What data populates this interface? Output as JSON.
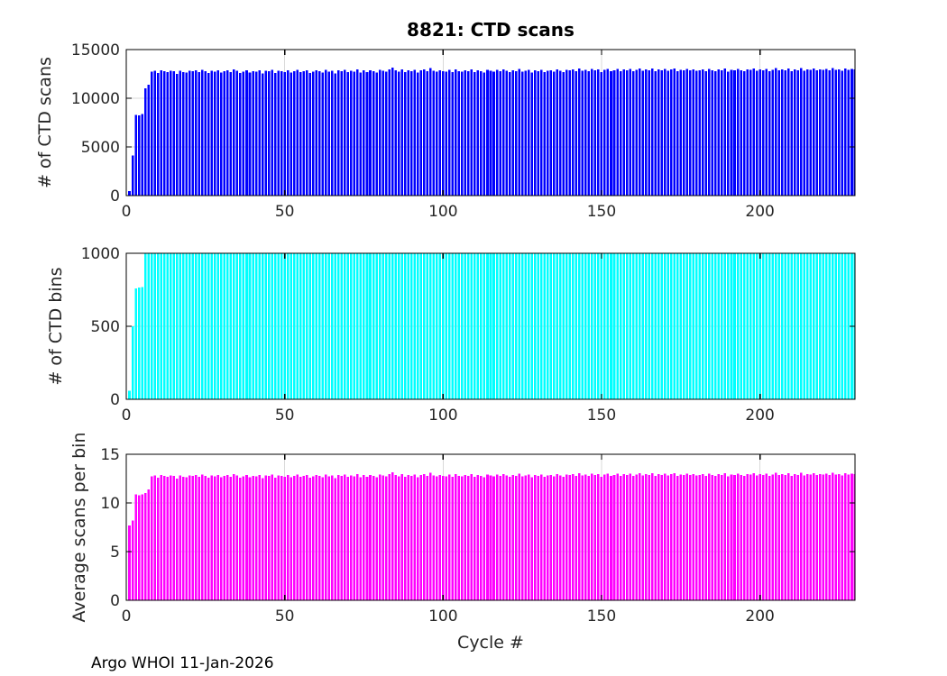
{
  "figure": {
    "title": "8821: CTD scans",
    "footer_note": "Argo WHOI 11-Jan-2026",
    "xlabel": "Cycle #"
  },
  "colors": {
    "background": "#FFFFFF",
    "axis": "#000000",
    "tick_text": "#262626",
    "grid": "#D9D9D9",
    "bar_blue": "#0000FF",
    "bar_cyan": "#00FFFF",
    "bar_magenta": "#FF00FF"
  },
  "chart_data": [
    {
      "type": "bar",
      "title": "8821: CTD scans",
      "ylabel": "# of CTD scans",
      "color": "#0000FF",
      "ylim": [
        0,
        15000
      ],
      "yticks": [
        0,
        5000,
        10000,
        15000
      ],
      "xlim": [
        0,
        230
      ],
      "xticks": [
        0,
        50,
        100,
        150,
        200
      ],
      "x_start": 1,
      "grid": true,
      "values": [
        460,
        4100,
        8300,
        8250,
        8400,
        11000,
        11400,
        12750,
        12820,
        12580,
        12860,
        12790,
        12700,
        12840,
        12760,
        12500,
        12830,
        12700,
        12640,
        12810,
        12770,
        12850,
        12680,
        12900,
        12760,
        12590,
        12830,
        12750,
        12880,
        12620,
        12780,
        12860,
        12700,
        12940,
        12810,
        12570,
        12750,
        12890,
        12660,
        12800,
        12730,
        12880,
        12540,
        12820,
        12770,
        12930,
        12610,
        12840,
        12780,
        12700,
        12870,
        12650,
        12800,
        12920,
        12680,
        12760,
        12850,
        12590,
        12730,
        12870,
        12800,
        12650,
        12900,
        12740,
        12820,
        12560,
        12880,
        12790,
        12930,
        12670,
        12810,
        12750,
        12950,
        12620,
        12860,
        12700,
        12890,
        12770,
        12640,
        12920,
        12830,
        12710,
        12960,
        13150,
        12880,
        12750,
        12980,
        12700,
        12850,
        12780,
        12920,
        12640,
        12890,
        12960,
        12760,
        13100,
        12820,
        12730,
        12870,
        12800,
        12750,
        12900,
        12680,
        12940,
        12800,
        12730,
        12890,
        12760,
        12980,
        12700,
        12850,
        12790,
        12660,
        12930,
        12810,
        12740,
        12900,
        12770,
        12950,
        12830,
        12700,
        12880,
        12760,
        12990,
        12720,
        12840,
        12910,
        12650,
        12870,
        12800,
        12930,
        12690,
        12820,
        12890,
        12740,
        12960,
        12810,
        12700,
        12930,
        12860,
        12950,
        12780,
        13050,
        12820,
        12900,
        12760,
        13000,
        12850,
        12970,
        12700,
        12920,
        12990,
        12760,
        12880,
        13030,
        12800,
        12950,
        12870,
        13010,
        12780,
        12900,
        13060,
        12830,
        12970,
        12890,
        13040,
        12760,
        12950,
        12880,
        13000,
        12820,
        12940,
        13070,
        12780,
        12930,
        12860,
        13020,
        12890,
        12960,
        12830,
        12880,
        12950,
        12800,
        13000,
        12870,
        12780,
        12960,
        12890,
        13040,
        12750,
        12920,
        12850,
        13010,
        12880,
        12790,
        12950,
        12900,
        13060,
        12820,
        12940,
        12860,
        13000,
        12780,
        12930,
        13080,
        12850,
        12960,
        12890,
        13050,
        12800,
        12940,
        12870,
        13100,
        12830,
        12980,
        12900,
        13060,
        12850,
        12970,
        12920,
        13000,
        12860,
        13080,
        12910,
        12980,
        12840,
        13050,
        12930,
        13010,
        12960
      ]
    },
    {
      "type": "bar",
      "ylabel": "# of CTD bins",
      "color": "#00FFFF",
      "ylim": [
        0,
        1000
      ],
      "yticks": [
        0,
        500,
        1000
      ],
      "xlim": [
        0,
        230
      ],
      "xticks": [
        0,
        50,
        100,
        150,
        200
      ],
      "x_start": 1,
      "grid": true,
      "values": [
        60,
        500,
        760,
        765,
        770,
        1000,
        1000,
        1000,
        1000,
        1000,
        1000,
        1000,
        1000,
        1000,
        1000,
        1000,
        1000,
        1000,
        1000,
        1000,
        1000,
        1000,
        1000,
        1000,
        1000,
        1000,
        1000,
        1000,
        1000,
        1000,
        1000,
        1000,
        1000,
        1000,
        1000,
        1000,
        1000,
        1000,
        1000,
        1000,
        1000,
        1000,
        1000,
        1000,
        1000,
        1000,
        1000,
        1000,
        1000,
        1000,
        1000,
        1000,
        1000,
        1000,
        1000,
        1000,
        1000,
        1000,
        1000,
        1000,
        1000,
        1000,
        1000,
        1000,
        1000,
        1000,
        1000,
        1000,
        1000,
        1000,
        1000,
        1000,
        1000,
        1000,
        1000,
        1000,
        1000,
        1000,
        1000,
        1000,
        1000,
        1000,
        1000,
        1000,
        1000,
        1000,
        1000,
        1000,
        1000,
        1000,
        1000,
        1000,
        1000,
        1000,
        1000,
        1000,
        1000,
        1000,
        1000,
        1000,
        1000,
        1000,
        1000,
        1000,
        1000,
        1000,
        1000,
        1000,
        1000,
        1000,
        1000,
        1000,
        1000,
        1000,
        1000,
        1000,
        1000,
        1000,
        1000,
        1000,
        1000,
        1000,
        1000,
        1000,
        1000,
        1000,
        1000,
        1000,
        1000,
        1000,
        1000,
        1000,
        1000,
        1000,
        1000,
        1000,
        1000,
        1000,
        1000,
        1000,
        1000,
        1000,
        1000,
        1000,
        1000,
        1000,
        1000,
        1000,
        1000,
        1000,
        1000,
        1000,
        1000,
        1000,
        1000,
        1000,
        1000,
        1000,
        1000,
        1000,
        1000,
        1000,
        1000,
        1000,
        1000,
        1000,
        1000,
        1000,
        1000,
        1000,
        1000,
        1000,
        1000,
        1000,
        1000,
        1000,
        1000,
        1000,
        1000,
        1000,
        1000,
        1000,
        1000,
        1000,
        1000,
        1000,
        1000,
        1000,
        1000,
        1000,
        1000,
        1000,
        1000,
        1000,
        1000,
        1000,
        1000,
        1000,
        1000,
        1000,
        1000,
        1000,
        1000,
        1000,
        1000,
        1000,
        1000,
        1000,
        1000,
        1000,
        1000,
        1000,
        1000,
        1000,
        1000,
        1000,
        1000,
        1000,
        1000,
        1000,
        1000,
        1000,
        1000,
        1000,
        1000,
        1000,
        1000,
        1000,
        1000,
        1000
      ]
    },
    {
      "type": "bar",
      "ylabel": "Average scans per bin",
      "xlabel": "Cycle #",
      "color": "#FF00FF",
      "ylim": [
        0,
        15
      ],
      "yticks": [
        0,
        5,
        10,
        15
      ],
      "xlim": [
        0,
        230
      ],
      "xticks": [
        0,
        50,
        100,
        150,
        200
      ],
      "x_start": 1,
      "grid": true,
      "values": [
        7.7,
        8.2,
        10.9,
        10.8,
        10.9,
        11.0,
        11.4,
        12.75,
        12.82,
        12.58,
        12.86,
        12.79,
        12.7,
        12.84,
        12.76,
        12.5,
        12.83,
        12.7,
        12.64,
        12.81,
        12.77,
        12.85,
        12.68,
        12.9,
        12.76,
        12.59,
        12.83,
        12.75,
        12.88,
        12.62,
        12.78,
        12.86,
        12.7,
        12.94,
        12.81,
        12.57,
        12.75,
        12.89,
        12.66,
        12.8,
        12.73,
        12.88,
        12.54,
        12.82,
        12.77,
        12.93,
        12.61,
        12.84,
        12.78,
        12.7,
        12.87,
        12.65,
        12.8,
        12.92,
        12.68,
        12.76,
        12.85,
        12.59,
        12.73,
        12.87,
        12.8,
        12.65,
        12.9,
        12.74,
        12.82,
        12.56,
        12.88,
        12.79,
        12.93,
        12.67,
        12.81,
        12.75,
        12.95,
        12.62,
        12.86,
        12.7,
        12.89,
        12.77,
        12.64,
        12.92,
        12.83,
        12.71,
        12.96,
        13.15,
        12.88,
        12.75,
        12.98,
        12.7,
        12.85,
        12.78,
        12.92,
        12.64,
        12.89,
        12.96,
        12.76,
        13.1,
        12.82,
        12.73,
        12.87,
        12.8,
        12.75,
        12.9,
        12.68,
        12.94,
        12.8,
        12.73,
        12.89,
        12.76,
        12.98,
        12.7,
        12.85,
        12.79,
        12.66,
        12.93,
        12.81,
        12.74,
        12.9,
        12.77,
        12.95,
        12.83,
        12.7,
        12.88,
        12.76,
        12.99,
        12.72,
        12.84,
        12.91,
        12.65,
        12.87,
        12.8,
        12.93,
        12.69,
        12.82,
        12.89,
        12.74,
        12.96,
        12.81,
        12.7,
        12.93,
        12.86,
        12.95,
        12.78,
        13.05,
        12.82,
        12.9,
        12.76,
        13.0,
        12.85,
        12.97,
        12.7,
        12.92,
        12.99,
        12.76,
        12.88,
        13.03,
        12.8,
        12.95,
        12.87,
        13.01,
        12.78,
        12.9,
        13.06,
        12.83,
        12.97,
        12.89,
        13.04,
        12.76,
        12.95,
        12.88,
        13.0,
        12.82,
        12.94,
        13.07,
        12.78,
        12.93,
        12.86,
        13.02,
        12.89,
        12.96,
        12.83,
        12.88,
        12.95,
        12.8,
        13.0,
        12.87,
        12.78,
        12.96,
        12.89,
        13.04,
        12.75,
        12.92,
        12.85,
        13.01,
        12.88,
        12.79,
        12.95,
        12.9,
        13.06,
        12.82,
        12.94,
        12.86,
        13.0,
        12.78,
        12.93,
        13.08,
        12.85,
        12.96,
        12.89,
        13.05,
        12.8,
        12.94,
        12.87,
        13.1,
        12.83,
        12.98,
        12.9,
        13.06,
        12.85,
        12.97,
        12.92,
        13.0,
        12.86,
        13.08,
        12.91,
        12.98,
        12.84,
        13.05,
        12.93,
        13.01,
        12.96
      ]
    }
  ]
}
